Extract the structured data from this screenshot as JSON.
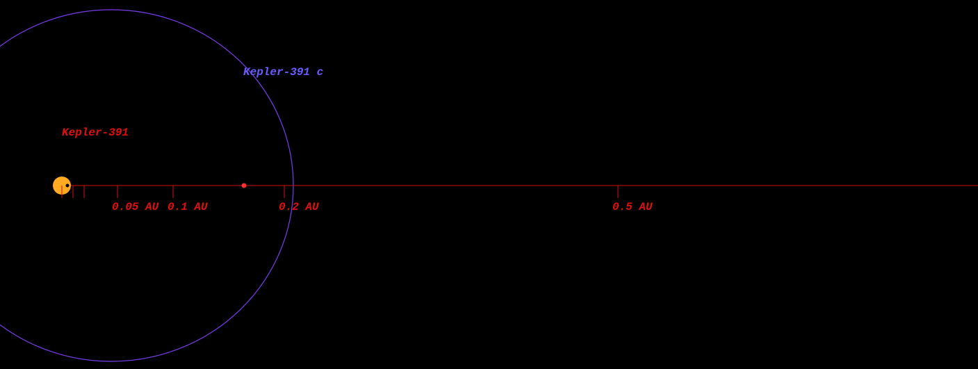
{
  "star": {
    "name": "Kepler-391"
  },
  "planet": {
    "name": "Kepler-391 c"
  },
  "scale": {
    "ticks": [
      {
        "value": 0.05,
        "label": "0.05 AU"
      },
      {
        "value": 0.1,
        "label": "0.1 AU"
      },
      {
        "value": 0.2,
        "label": "0.2 AU"
      },
      {
        "value": 0.5,
        "label": "0.5 AU"
      }
    ]
  }
}
